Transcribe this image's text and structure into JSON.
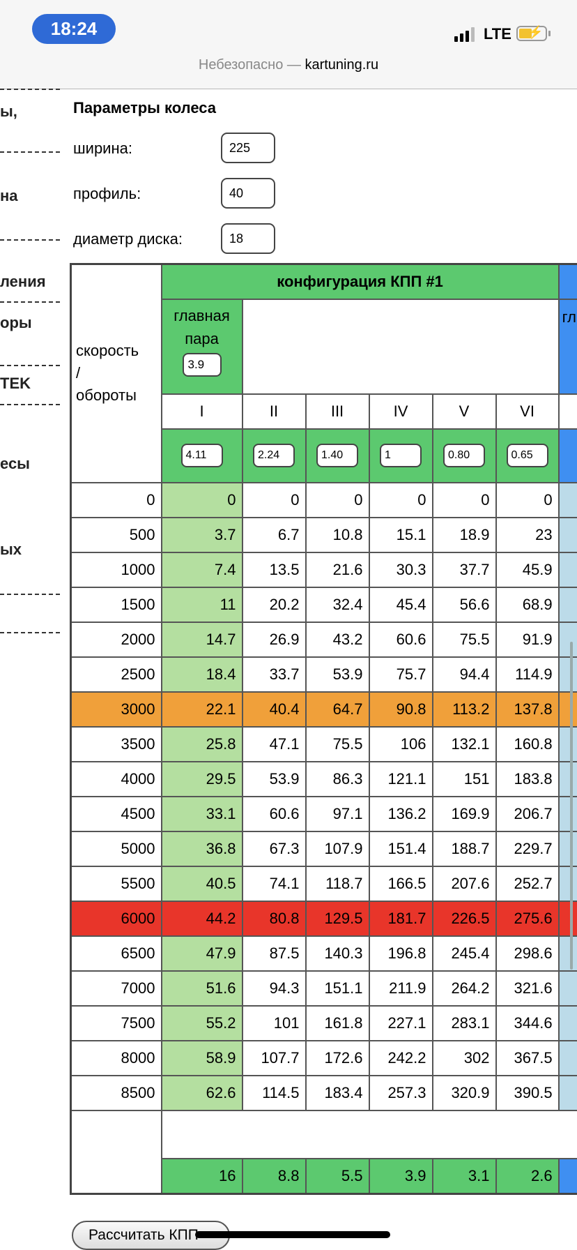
{
  "status_bar": {
    "time": "18:24",
    "network": "LTE",
    "icons": [
      "signal-icon",
      "battery-charging-icon"
    ],
    "accent": "#2f6ad6"
  },
  "address_bar": {
    "insecure_label": "Небезопасно —",
    "domain": "kartuning.ru"
  },
  "sidebar_fragments": [
    "ы,",
    "на",
    "ления",
    "оры",
    "TEK",
    "есы",
    "ых"
  ],
  "wheel": {
    "title": "Параметры колеса",
    "width_label": "ширина:",
    "width_value": "225",
    "profile_label": "профиль:",
    "profile_value": "40",
    "diameter_label": "диаметр диска:",
    "diameter_value": "18"
  },
  "table": {
    "corner_label_1": "скорость",
    "corner_label_2": "/",
    "corner_label_3": "обороты",
    "config_title": "конфигурация КПП #1",
    "main_pair_label_1": "главная",
    "main_pair_label_2": "пара",
    "main_pair_value": "3.9",
    "next_main_pair_fragment": "гл",
    "gears": [
      "I",
      "II",
      "III",
      "IV",
      "V",
      "VI"
    ],
    "ratios": [
      "4.11",
      "2.24",
      "1.40",
      "1",
      "0.80",
      "0.65"
    ],
    "rows": [
      {
        "rpm": "0",
        "speeds": [
          "0",
          "0",
          "0",
          "0",
          "0",
          "0"
        ]
      },
      {
        "rpm": "500",
        "speeds": [
          "3.7",
          "6.7",
          "10.8",
          "15.1",
          "18.9",
          "23"
        ]
      },
      {
        "rpm": "1000",
        "speeds": [
          "7.4",
          "13.5",
          "21.6",
          "30.3",
          "37.7",
          "45.9"
        ]
      },
      {
        "rpm": "1500",
        "speeds": [
          "11",
          "20.2",
          "32.4",
          "45.4",
          "56.6",
          "68.9"
        ]
      },
      {
        "rpm": "2000",
        "speeds": [
          "14.7",
          "26.9",
          "43.2",
          "60.6",
          "75.5",
          "91.9"
        ]
      },
      {
        "rpm": "2500",
        "speeds": [
          "18.4",
          "33.7",
          "53.9",
          "75.7",
          "94.4",
          "114.9"
        ]
      },
      {
        "rpm": "3000",
        "speeds": [
          "22.1",
          "40.4",
          "64.7",
          "90.8",
          "113.2",
          "137.8"
        ],
        "highlight": "orange"
      },
      {
        "rpm": "3500",
        "speeds": [
          "25.8",
          "47.1",
          "75.5",
          "106",
          "132.1",
          "160.8"
        ]
      },
      {
        "rpm": "4000",
        "speeds": [
          "29.5",
          "53.9",
          "86.3",
          "121.1",
          "151",
          "183.8"
        ]
      },
      {
        "rpm": "4500",
        "speeds": [
          "33.1",
          "60.6",
          "97.1",
          "136.2",
          "169.9",
          "206.7"
        ]
      },
      {
        "rpm": "5000",
        "speeds": [
          "36.8",
          "67.3",
          "107.9",
          "151.4",
          "188.7",
          "229.7"
        ]
      },
      {
        "rpm": "5500",
        "speeds": [
          "40.5",
          "74.1",
          "118.7",
          "166.5",
          "207.6",
          "252.7"
        ]
      },
      {
        "rpm": "6000",
        "speeds": [
          "44.2",
          "80.8",
          "129.5",
          "181.7",
          "226.5",
          "275.6"
        ],
        "highlight": "red"
      },
      {
        "rpm": "6500",
        "speeds": [
          "47.9",
          "87.5",
          "140.3",
          "196.8",
          "245.4",
          "298.6"
        ]
      },
      {
        "rpm": "7000",
        "speeds": [
          "51.6",
          "94.3",
          "151.1",
          "211.9",
          "264.2",
          "321.6"
        ]
      },
      {
        "rpm": "7500",
        "speeds": [
          "55.2",
          "101",
          "161.8",
          "227.1",
          "283.1",
          "344.6"
        ]
      },
      {
        "rpm": "8000",
        "speeds": [
          "58.9",
          "107.7",
          "172.6",
          "242.2",
          "302",
          "367.5"
        ]
      },
      {
        "rpm": "8500",
        "speeds": [
          "62.6",
          "114.5",
          "183.4",
          "257.3",
          "320.9",
          "390.5"
        ]
      }
    ],
    "footer_values": [
      "16",
      "8.8",
      "5.5",
      "3.9",
      "3.1",
      "2.6"
    ],
    "colors": {
      "green": "#5cc96f",
      "light_green": "#b4dfa0",
      "orange": "#f0a03a",
      "red": "#e8352a",
      "blue": "#3f8ff1",
      "light_blue": "#bcdbe9"
    }
  },
  "calculate_button": "Рассчитать КПП"
}
